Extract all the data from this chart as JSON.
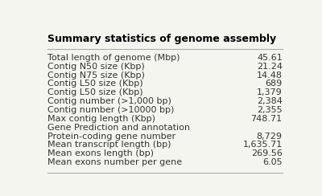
{
  "title": "Summary statistics of genome assembly",
  "rows": [
    [
      "Total length of genome (Mbp)",
      "45.61"
    ],
    [
      "Contig N50 size (Kbp)",
      "21.24"
    ],
    [
      "Contig N75 size (Kbp)",
      "14.48"
    ],
    [
      "Contig L50 size (Kbp)",
      "689"
    ],
    [
      "Contig L50 size (Kbp)",
      "1,379"
    ],
    [
      "Contig number (>1,000 bp)",
      "2,384"
    ],
    [
      "Contig number (>10000 bp)",
      "2,355"
    ],
    [
      "Max contig length (Kbp)",
      "748.71"
    ],
    [
      "Gene Prediction and annotation",
      ""
    ],
    [
      "Protein-coding gene number",
      "8,729"
    ],
    [
      "Mean transcript length (bp)",
      "1,635.71"
    ],
    [
      "Mean exons length (bp)",
      "269.56"
    ],
    [
      "Mean exons number per gene",
      "6.05"
    ]
  ],
  "title_fontsize": 9,
  "body_fontsize": 8,
  "bg_color": "#f5f5f0",
  "title_color": "#000000",
  "text_color": "#333333",
  "line_color": "#aaaaaa",
  "section_index": 8
}
